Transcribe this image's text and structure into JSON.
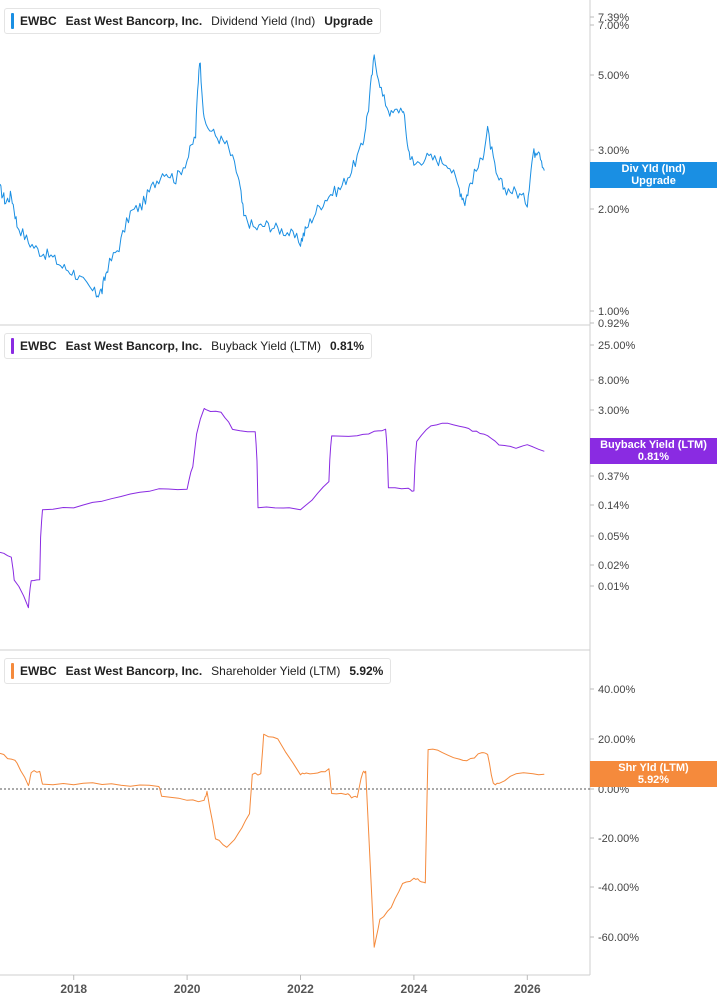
{
  "colors": {
    "dividend": "#1a8fe3",
    "buyback": "#8a2be2",
    "shareholder": "#f58a3c"
  },
  "legends": [
    {
      "ticker": "EWBC",
      "company": "East West Bancorp, Inc.",
      "metric": "Dividend Yield (Ind)",
      "value": "Upgrade"
    },
    {
      "ticker": "EWBC",
      "company": "East West Bancorp, Inc.",
      "metric": "Buyback Yield (LTM)",
      "value": "0.81%"
    },
    {
      "ticker": "EWBC",
      "company": "East West Bancorp, Inc.",
      "metric": "Shareholder Yield (LTM)",
      "value": "5.92%"
    }
  ],
  "tags": [
    {
      "line1": "Div Yld (Ind)",
      "line2": "Upgrade"
    },
    {
      "line1": "Buyback Yield (LTM)",
      "line2": "0.81%"
    },
    {
      "line1": "Shr Yld (LTM)",
      "line2": "5.92%"
    }
  ],
  "chart_data": [
    {
      "type": "line",
      "title": "EWBC East West Bancorp, Inc. Dividend Yield (Ind)",
      "scale": "log",
      "y_range": [
        0.92,
        7.39
      ],
      "y_ticks": [
        "7.39%",
        "7.00%",
        "5.00%",
        "3.00%",
        "2.00%",
        "1.00%",
        "0.92%"
      ],
      "y_tick_values": [
        7.39,
        7.0,
        5.0,
        3.0,
        2.0,
        1.0,
        0.92
      ],
      "series": [
        {
          "x": [
            2016.7,
            2016.8,
            2016.9,
            2017.0,
            2017.2,
            2017.4,
            2017.6,
            2017.8,
            2018.0,
            2018.2,
            2018.4,
            2018.5,
            2018.6,
            2018.8,
            2019.0,
            2019.2,
            2019.4,
            2019.6,
            2019.8,
            2020.0,
            2020.15,
            2020.22,
            2020.3,
            2020.5,
            2020.7,
            2020.9,
            2021.0,
            2021.2,
            2021.4,
            2021.6,
            2021.8,
            2022.0,
            2022.1,
            2022.3,
            2022.5,
            2022.7,
            2022.9,
            2023.1,
            2023.2,
            2023.3,
            2023.45,
            2023.6,
            2023.8,
            2023.9,
            2024.0,
            2024.2,
            2024.4,
            2024.6,
            2024.8,
            2024.9,
            2025.0,
            2025.2,
            2025.3,
            2025.45,
            2025.6,
            2025.8,
            2026.0,
            2026.1,
            2026.2,
            2026.3
          ],
          "y": [
            2.3,
            2.1,
            2.2,
            1.8,
            1.6,
            1.5,
            1.45,
            1.35,
            1.3,
            1.2,
            1.12,
            1.15,
            1.35,
            1.55,
            1.95,
            2.05,
            2.35,
            2.6,
            2.45,
            2.8,
            3.3,
            5.6,
            3.6,
            3.3,
            3.1,
            2.5,
            1.9,
            1.75,
            1.8,
            1.75,
            1.7,
            1.6,
            1.75,
            2.0,
            2.2,
            2.3,
            2.6,
            3.1,
            4.0,
            5.6,
            4.3,
            3.8,
            4.0,
            3.0,
            2.7,
            2.85,
            2.8,
            2.75,
            2.3,
            2.1,
            2.4,
            2.8,
            3.4,
            2.5,
            2.3,
            2.25,
            2.1,
            2.9,
            3.05,
            2.6
          ],
          "color": "#1a8fe3"
        }
      ]
    },
    {
      "type": "line",
      "title": "EWBC East West Bancorp, Inc. Buyback Yield (LTM)",
      "y_ticks": [
        "25.00%",
        "8.00%",
        "3.00%",
        "0.37%",
        "0.14%",
        "0.05%",
        "0.02%",
        "0.01%"
      ],
      "series": [
        {
          "x": [
            2016.7,
            2016.9,
            2016.95,
            2017.2,
            2017.25,
            2017.4,
            2017.45,
            2018.0,
            2018.5,
            2019.0,
            2019.5,
            2020.0,
            2020.1,
            2020.3,
            2020.32,
            2020.6,
            2020.8,
            2021.2,
            2021.25,
            2021.7,
            2022.0,
            2022.2,
            2022.5,
            2022.55,
            2023.0,
            2023.3,
            2023.5,
            2023.55,
            2023.9,
            2024.0,
            2024.05,
            2024.3,
            2024.6,
            2024.9,
            2025.1,
            2025.3,
            2025.5,
            2025.8,
            2026.0,
            2026.3
          ],
          "y": [
            0.03,
            0.025,
            0.012,
            0.005,
            0.012,
            0.012,
            0.12,
            0.13,
            0.16,
            0.2,
            0.24,
            0.24,
            0.5,
            3.2,
            3.0,
            2.8,
            1.6,
            1.5,
            0.13,
            0.13,
            0.12,
            0.16,
            0.3,
            1.3,
            1.3,
            1.5,
            1.6,
            0.25,
            0.24,
            0.22,
            1.1,
            1.8,
            2.0,
            1.7,
            1.5,
            1.3,
            1.0,
            0.9,
            1.0,
            0.81
          ],
          "color": "#8a2be2"
        }
      ]
    },
    {
      "type": "line",
      "title": "EWBC East West Bancorp, Inc. Shareholder Yield (LTM)",
      "y_range": [
        -70,
        46
      ],
      "y_ticks": [
        "40.00%",
        "20.00%",
        "0.00%",
        "-20.00%",
        "-40.00%",
        "-60.00%"
      ],
      "y_tick_values": [
        40,
        20,
        0,
        -20,
        -40,
        -60
      ],
      "series": [
        {
          "x": [
            2016.7,
            2016.9,
            2017.0,
            2017.2,
            2017.25,
            2017.4,
            2017.45,
            2018.0,
            2018.5,
            2019.0,
            2019.5,
            2019.55,
            2020.0,
            2020.3,
            2020.35,
            2020.5,
            2020.7,
            2020.9,
            2021.1,
            2021.15,
            2021.3,
            2021.35,
            2021.6,
            2022.0,
            2022.1,
            2022.3,
            2022.5,
            2022.55,
            2022.8,
            2022.9,
            2023.0,
            2023.1,
            2023.15,
            2023.3,
            2023.4,
            2023.6,
            2023.8,
            2024.0,
            2024.1,
            2024.2,
            2024.25,
            2024.5,
            2024.8,
            2025.0,
            2025.2,
            2025.3,
            2025.4,
            2025.5,
            2025.8,
            2026.0,
            2026.3
          ],
          "y": [
            14,
            12,
            11,
            1,
            7,
            7,
            2,
            2,
            2,
            1.5,
            1.5,
            -3,
            -4,
            -5,
            -1,
            -20,
            -24,
            -18,
            -10,
            6,
            6,
            22,
            20,
            6,
            6,
            6,
            8,
            -2,
            -2,
            -3,
            -3,
            7,
            7,
            -64,
            -53,
            -48,
            -38,
            -36,
            -37,
            -38,
            16,
            15,
            12,
            12,
            15,
            14,
            2,
            2,
            6,
            6,
            5.92
          ],
          "color": "#f58a3c"
        }
      ]
    }
  ],
  "x_axis": {
    "ticks": [
      "2018",
      "2020",
      "2022",
      "2024",
      "2026"
    ],
    "tick_values": [
      2018,
      2020,
      2022,
      2024,
      2026
    ],
    "range": [
      2016.7,
      2026.7
    ]
  }
}
